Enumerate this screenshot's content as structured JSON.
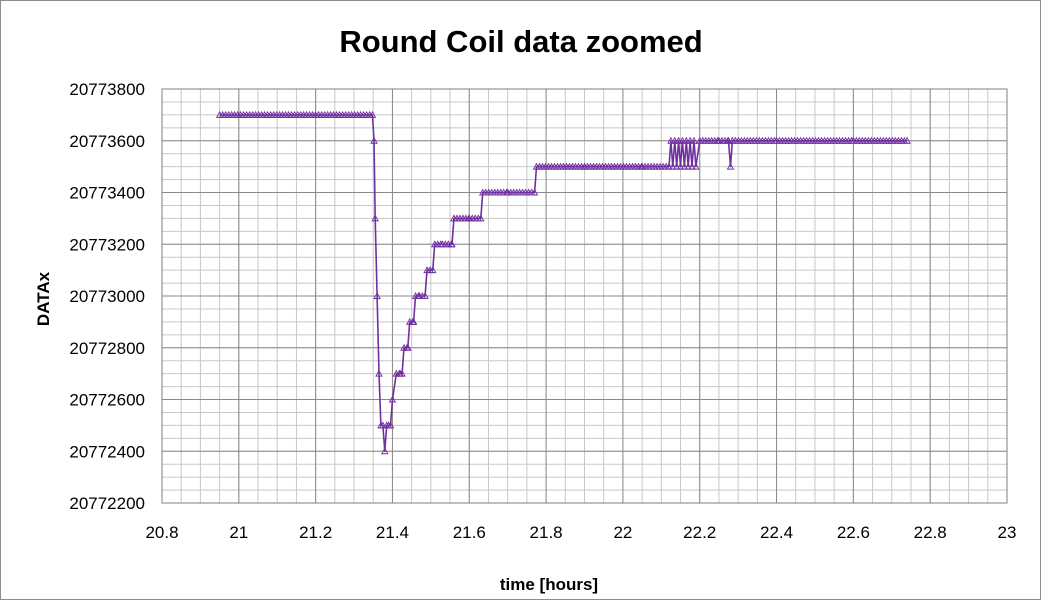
{
  "chart_data": {
    "type": "line",
    "title": "Round Coil data zoomed",
    "xlabel": "time [hours]",
    "ylabel": "DATAx",
    "xlim": [
      20.8,
      23
    ],
    "ylim": [
      20772200,
      20773800
    ],
    "x_ticks": [
      20.8,
      21,
      21.2,
      21.4,
      21.6,
      21.8,
      22,
      22.2,
      22.4,
      22.6,
      22.8,
      23
    ],
    "x_tick_labels": [
      "20.8",
      "21",
      "21.2",
      "21.4",
      "21.6",
      "21.8",
      "22",
      "22.2",
      "22.4",
      "22.6",
      "22.8",
      "23"
    ],
    "y_ticks": [
      20772200,
      20772400,
      20772600,
      20772800,
      20773000,
      20773200,
      20773400,
      20773600,
      20773800
    ],
    "y_tick_labels": [
      "20772200",
      "20772400",
      "20772600",
      "20772800",
      "20773000",
      "20773200",
      "20773400",
      "20773600",
      "20773800"
    ],
    "grid": true,
    "minor_grid": true,
    "legend": "none",
    "marker": "triangle",
    "series_color": "#7030a0",
    "series": [
      {
        "x": [
          20.95,
          21.348,
          21.352,
          21.355,
          21.36,
          21.365,
          21.37,
          21.375,
          21.38,
          21.385,
          21.39,
          21.395,
          21.4,
          21.41,
          21.42,
          21.425,
          21.43,
          21.44,
          21.445,
          21.455,
          21.46,
          21.47,
          21.485,
          21.49,
          21.505,
          21.51,
          21.53,
          21.555,
          21.56,
          21.6,
          21.63,
          21.635,
          21.7,
          21.77,
          21.775,
          21.9,
          22.05,
          22.12,
          22.125,
          22.13,
          22.135,
          22.14,
          22.145,
          22.15,
          22.155,
          22.16,
          22.165,
          22.17,
          22.175,
          22.18,
          22.185,
          22.19,
          22.2,
          22.25,
          22.275,
          22.28,
          22.285,
          22.4,
          22.6,
          22.74
        ],
        "y": [
          20773700,
          20773700,
          20773600,
          20773300,
          20773000,
          20772700,
          20772500,
          20772500,
          20772400,
          20772500,
          20772500,
          20772500,
          20772600,
          20772700,
          20772700,
          20772700,
          20772800,
          20772800,
          20772900,
          20772900,
          20773000,
          20773000,
          20773000,
          20773100,
          20773100,
          20773200,
          20773200,
          20773200,
          20773300,
          20773300,
          20773300,
          20773400,
          20773400,
          20773400,
          20773500,
          20773500,
          20773500,
          20773500,
          20773600,
          20773500,
          20773600,
          20773500,
          20773600,
          20773500,
          20773600,
          20773500,
          20773600,
          20773500,
          20773600,
          20773500,
          20773600,
          20773500,
          20773600,
          20773600,
          20773600,
          20773500,
          20773600,
          20773600,
          20773600,
          20773600
        ]
      }
    ]
  }
}
